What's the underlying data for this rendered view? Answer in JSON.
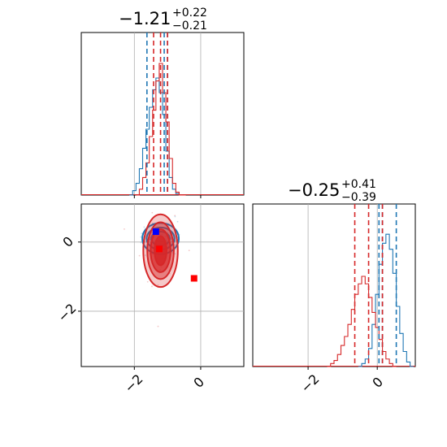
{
  "chart_data": {
    "type": "corner",
    "colors": {
      "series_a": "#1f77b4",
      "series_b": "#d62728",
      "grid": "#b0b0b0"
    },
    "x_range": [
      -3.6,
      1.3
    ],
    "y_range": [
      -3.6,
      1.1
    ],
    "panels": [
      {
        "name": "marginal-param1",
        "type": "histogram",
        "title": {
          "value": "−1.21",
          "upper": "+0.22",
          "lower": "−0.21"
        },
        "xlim": [
          -3.6,
          1.3
        ],
        "grid_x": [
          -2,
          0
        ],
        "quantiles_series_a": [
          -1.62,
          -1.1,
          -1.0
        ],
        "quantiles_series_b": [
          -1.42,
          -1.21,
          -1.0
        ],
        "series": [
          {
            "name": "",
            "color": "#1f77b4",
            "bins_x": [
              -2.1,
              -2.0,
              -1.9,
              -1.8,
              -1.7,
              -1.6,
              -1.5,
              -1.4,
              -1.3,
              -1.2,
              -1.1,
              -1.0,
              -0.9,
              -0.8,
              -0.7,
              -0.6
            ],
            "counts": [
              0.0,
              0.03,
              0.08,
              0.18,
              0.32,
              0.45,
              0.6,
              0.72,
              0.8,
              0.7,
              0.55,
              0.3,
              0.12,
              0.04,
              0.01,
              0.0
            ]
          },
          {
            "name": "",
            "color": "#d62728",
            "bins_x": [
              -1.9,
              -1.8,
              -1.7,
              -1.6,
              -1.5,
              -1.4,
              -1.3,
              -1.2,
              -1.1,
              -1.0,
              -0.9,
              -0.8,
              -0.7,
              -0.6,
              -0.5
            ],
            "counts": [
              0.0,
              0.04,
              0.12,
              0.22,
              0.4,
              0.58,
              0.78,
              0.9,
              0.7,
              0.5,
              0.25,
              0.08,
              0.02,
              0.0,
              0.0
            ]
          }
        ]
      },
      {
        "name": "marginal-param2",
        "type": "histogram",
        "title": {
          "value": "−0.25",
          "upper": "+0.41",
          "lower": "−0.39"
        },
        "xlim": [
          -3.6,
          1.1
        ],
        "grid_x": [
          -2,
          0
        ],
        "quantiles_series_a": [
          0.05,
          0.15,
          0.55
        ],
        "quantiles_series_b": [
          -0.65,
          -0.25,
          0.15
        ],
        "series": [
          {
            "name": "",
            "color": "#1f77b4",
            "bins_x": [
              -0.5,
              -0.4,
              -0.3,
              -0.2,
              -0.1,
              0.0,
              0.1,
              0.2,
              0.3,
              0.4,
              0.5,
              0.6,
              0.7,
              0.8,
              0.9,
              1.0
            ],
            "counts": [
              0.0,
              0.02,
              0.05,
              0.12,
              0.28,
              0.48,
              0.68,
              0.82,
              0.88,
              0.78,
              0.62,
              0.4,
              0.22,
              0.1,
              0.03,
              0.0
            ]
          },
          {
            "name": "",
            "color": "#d62728",
            "bins_x": [
              -1.4,
              -1.3,
              -1.2,
              -1.1,
              -1.0,
              -0.9,
              -0.8,
              -0.7,
              -0.6,
              -0.5,
              -0.4,
              -0.3,
              -0.2,
              -0.1,
              0.0,
              0.1,
              0.2,
              0.3,
              0.4,
              0.5
            ],
            "counts": [
              0.0,
              0.02,
              0.04,
              0.08,
              0.14,
              0.2,
              0.28,
              0.38,
              0.48,
              0.55,
              0.6,
              0.55,
              0.46,
              0.36,
              0.26,
              0.18,
              0.1,
              0.05,
              0.02,
              0.0
            ]
          }
        ]
      },
      {
        "name": "joint-param1-param2",
        "type": "contour",
        "xlim": [
          -3.6,
          1.3
        ],
        "ylim": [
          -3.6,
          1.1
        ],
        "grid_x": [
          -2,
          0
        ],
        "grid_y": [
          -2,
          0
        ],
        "x_ticks": [
          -2,
          0
        ],
        "y_ticks": [
          -2,
          0
        ],
        "contours": [
          {
            "series": "series_a",
            "cx": -1.21,
            "cy": 0.1,
            "levels": [
              [
                0.55,
                0.45
              ],
              [
                0.42,
                0.32
              ],
              [
                0.28,
                0.2
              ]
            ]
          },
          {
            "series": "series_b",
            "cx": -1.21,
            "cy": -0.25,
            "levels": [
              [
                0.52,
                1.05
              ],
              [
                0.4,
                0.82
              ],
              [
                0.3,
                0.62
              ],
              [
                0.18,
                0.42
              ]
            ]
          }
        ],
        "markers": [
          {
            "series": "series_a",
            "x": -1.35,
            "y": 0.3
          },
          {
            "series": "series_b",
            "x": -1.25,
            "y": -0.2
          },
          {
            "series": "series_b",
            "x": -0.2,
            "y": -1.05
          }
        ]
      }
    ],
    "tick_labels": {
      "minus2": "−2",
      "zero": "0"
    }
  }
}
